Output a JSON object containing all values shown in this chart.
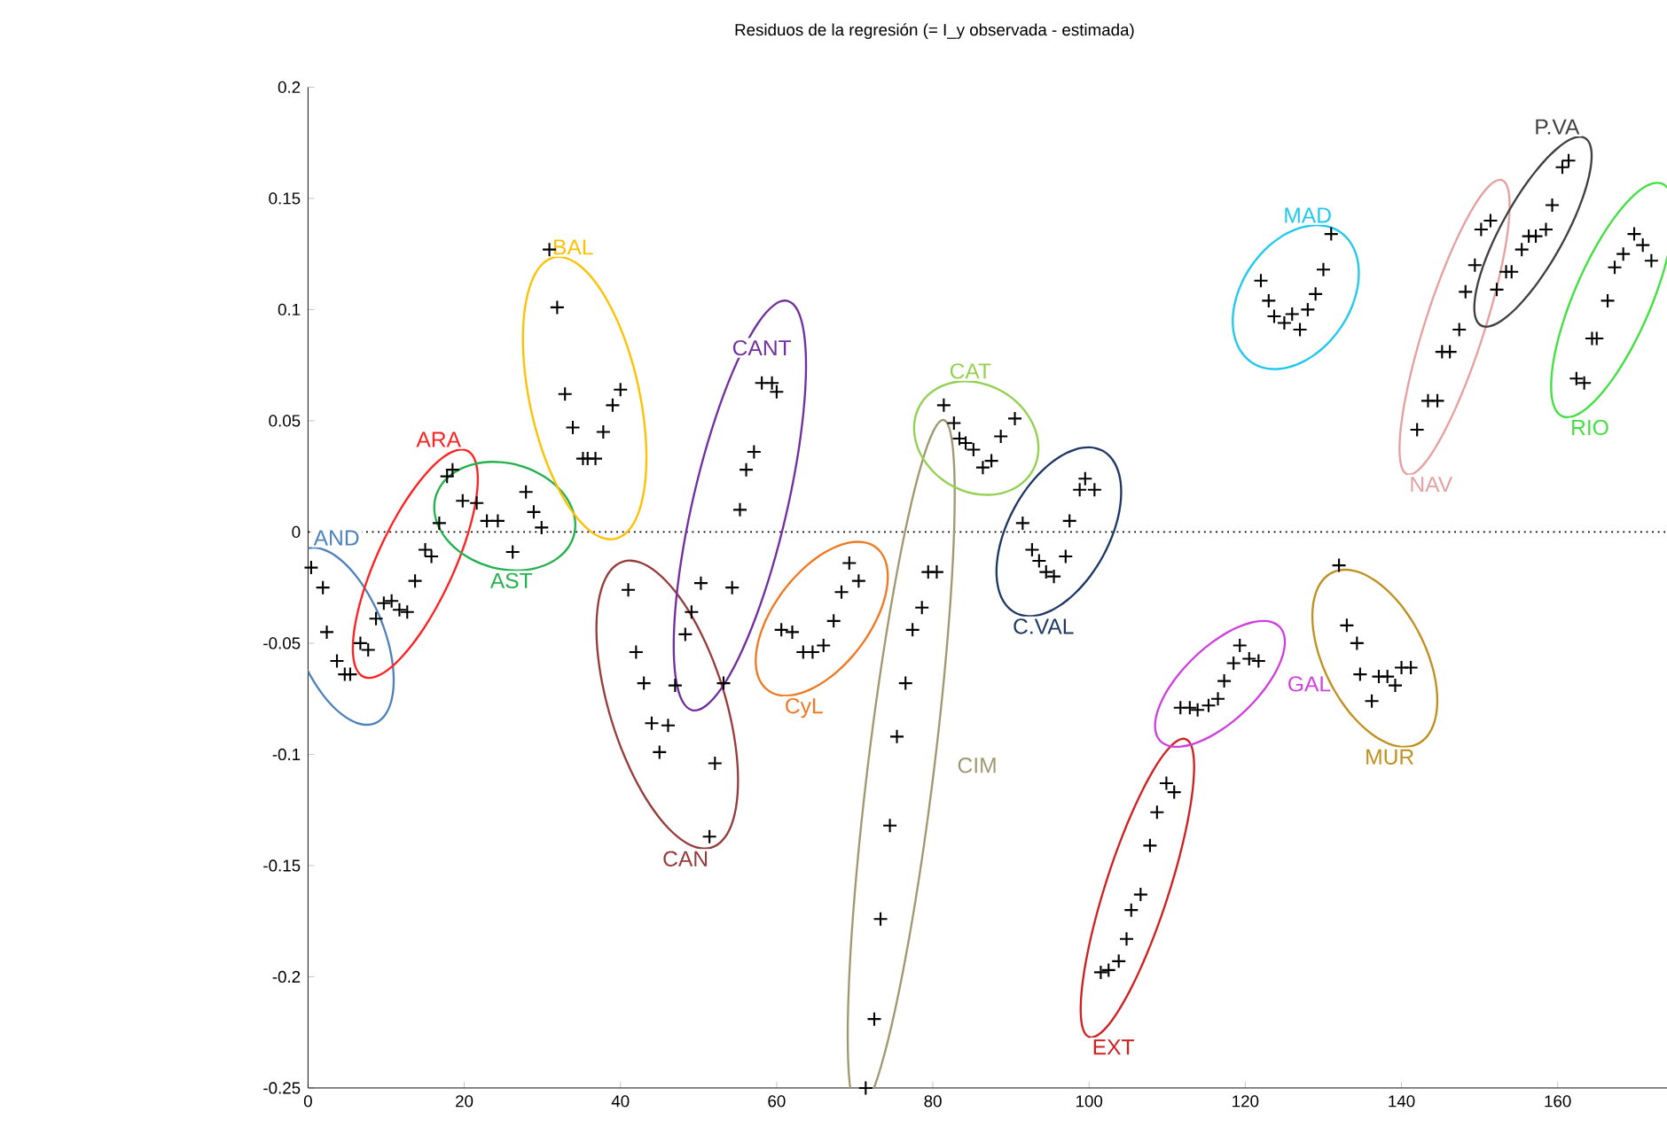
{
  "chart_data": {
    "type": "scatter",
    "title": "Residuos de la regresión (= I_y observada - estimada)",
    "xlim": [
      0,
      174
    ],
    "ylim": [
      -0.25,
      0.2
    ],
    "xticks": [
      0,
      20,
      40,
      60,
      80,
      100,
      120,
      140,
      160
    ],
    "yticks": [
      -0.25,
      -0.2,
      -0.15,
      -0.1,
      -0.05,
      0,
      0.05,
      0.1,
      0.15,
      0.2
    ],
    "marker": "cross",
    "grid": false,
    "ref_lines": [
      {
        "axis": "y",
        "value": 0,
        "line_style": "dotted",
        "color": "#000000"
      }
    ],
    "series": [
      {
        "name": "AND",
        "color": "#000000",
        "x": [
          0.4,
          1.9,
          2.4,
          3.7,
          4.7,
          5.4,
          6.7,
          7.7
        ],
        "values": [
          -0.016,
          -0.025,
          -0.045,
          -0.058,
          -0.064,
          -0.064,
          -0.05,
          -0.053
        ]
      },
      {
        "name": "ARA",
        "color": "#000000",
        "x": [
          8.7,
          9.7,
          10.7,
          11.7,
          12.7,
          13.7,
          15,
          15.8,
          16.8,
          17.8,
          18.5
        ],
        "values": [
          -0.039,
          -0.032,
          -0.031,
          -0.035,
          -0.036,
          -0.022,
          -0.008,
          -0.011,
          0.004,
          0.025,
          0.028
        ]
      },
      {
        "name": "AST",
        "color": "#000000",
        "x": [
          19.8,
          21.6,
          22.9,
          24.3,
          26.2,
          27.9,
          28.9,
          29.9
        ],
        "values": [
          0.014,
          0.013,
          0.005,
          0.005,
          -0.009,
          0.018,
          0.009,
          0.002
        ]
      },
      {
        "name": "BAL",
        "color": "#000000",
        "x": [
          30.9,
          31.9,
          32.9,
          33.9,
          35.2,
          35.8,
          36.8,
          37.8,
          39,
          40
        ],
        "values": [
          0.127,
          0.101,
          0.062,
          0.047,
          0.033,
          0.033,
          0.033,
          0.045,
          0.057,
          0.064
        ]
      },
      {
        "name": "CAN",
        "color": "#000000",
        "x": [
          41,
          42,
          43,
          44,
          45,
          46.1,
          47,
          48.3,
          51.4,
          52.1
        ],
        "values": [
          -0.026,
          -0.054,
          -0.068,
          -0.086,
          -0.099,
          -0.087,
          -0.069,
          -0.046,
          -0.137,
          -0.104
        ]
      },
      {
        "name": "CANT",
        "color": "#000000",
        "x": [
          49.1,
          50.3,
          53.2,
          54.3,
          55.3,
          56.1,
          57.1,
          58.1,
          59.4,
          60
        ],
        "values": [
          -0.036,
          -0.023,
          -0.068,
          -0.025,
          0.01,
          0.028,
          0.036,
          0.067,
          0.067,
          0.063
        ]
      },
      {
        "name": "CyL",
        "color": "#000000",
        "x": [
          60.6,
          62,
          63.4,
          64.6,
          66,
          67.3,
          68.3,
          69.3,
          70.5
        ],
        "values": [
          -0.044,
          -0.045,
          -0.054,
          -0.054,
          -0.051,
          -0.04,
          -0.027,
          -0.014,
          -0.022
        ]
      },
      {
        "name": "CIM",
        "color": "#000000",
        "x": [
          71.4,
          72.5,
          73.3,
          74.5,
          75.4,
          76.5,
          77.4,
          78.6,
          79.4,
          80.5
        ],
        "values": [
          -0.25,
          -0.219,
          -0.174,
          -0.132,
          -0.092,
          -0.068,
          -0.044,
          -0.034,
          -0.018,
          -0.018
        ]
      },
      {
        "name": "CAT",
        "color": "#000000",
        "x": [
          81.4,
          82.7,
          83.4,
          84.2,
          85.2,
          86.4,
          87.5,
          88.7,
          90.5
        ],
        "values": [
          0.057,
          0.049,
          0.042,
          0.04,
          0.037,
          0.029,
          0.032,
          0.043,
          0.051
        ]
      },
      {
        "name": "C.VAL",
        "color": "#000000",
        "x": [
          91.5,
          92.7,
          93.6,
          94.5,
          95.5,
          97,
          97.5,
          98.8,
          99.5,
          100.7
        ],
        "values": [
          0.004,
          -0.008,
          -0.013,
          -0.018,
          -0.02,
          -0.011,
          0.005,
          0.019,
          0.024,
          0.019
        ]
      },
      {
        "name": "EXT",
        "color": "#000000",
        "x": [
          101.5,
          102.5,
          103.8,
          104.8,
          105.4,
          106.6,
          107.8,
          108.7,
          109.9,
          110.9
        ],
        "values": [
          -0.198,
          -0.197,
          -0.193,
          -0.183,
          -0.17,
          -0.163,
          -0.141,
          -0.126,
          -0.113,
          -0.117
        ]
      },
      {
        "name": "GAL",
        "color": "#000000",
        "x": [
          111.7,
          112.9,
          113.9,
          115.3,
          116.5,
          117.3,
          118.5,
          119.3,
          120.5,
          121.7
        ],
        "values": [
          -0.079,
          -0.079,
          -0.08,
          -0.078,
          -0.075,
          -0.067,
          -0.059,
          -0.051,
          -0.057,
          -0.058
        ]
      },
      {
        "name": "MAD",
        "color": "#000000",
        "x": [
          122,
          123,
          123.7,
          125,
          126,
          127,
          128,
          129,
          130,
          131
        ],
        "values": [
          0.113,
          0.104,
          0.097,
          0.094,
          0.098,
          0.091,
          0.1,
          0.107,
          0.118,
          0.134
        ]
      },
      {
        "name": "MUR",
        "color": "#000000",
        "x": [
          132,
          133,
          134.3,
          134.7,
          136.2,
          137.1,
          138.2,
          139.2,
          140,
          141.2
        ],
        "values": [
          -0.015,
          -0.042,
          -0.05,
          -0.064,
          -0.076,
          -0.065,
          -0.065,
          -0.069,
          -0.061,
          -0.061
        ]
      },
      {
        "name": "NAV",
        "color": "#000000",
        "x": [
          142,
          143.4,
          144.6,
          145.2,
          146.2,
          147.4,
          148.2,
          149.4,
          150.2,
          151.4
        ],
        "values": [
          0.046,
          0.059,
          0.059,
          0.081,
          0.081,
          0.091,
          0.108,
          0.12,
          0.136,
          0.14
        ]
      },
      {
        "name": "P.VA",
        "color": "#000000",
        "x": [
          152.2,
          153.4,
          154.1,
          155.4,
          156.3,
          157.2,
          158.5,
          159.3,
          160.6,
          161.4
        ],
        "values": [
          0.109,
          0.117,
          0.117,
          0.127,
          0.133,
          0.133,
          0.136,
          0.147,
          0.164,
          0.167
        ]
      },
      {
        "name": "RIO",
        "color": "#000000",
        "x": [
          162.4,
          163.4,
          164.4,
          165,
          166.4,
          167.3,
          168.4,
          169.8,
          170.9,
          172
        ],
        "values": [
          0.069,
          0.067,
          0.087,
          0.087,
          0.104,
          0.119,
          0.125,
          0.134,
          0.129,
          0.122
        ]
      }
    ]
  }
}
